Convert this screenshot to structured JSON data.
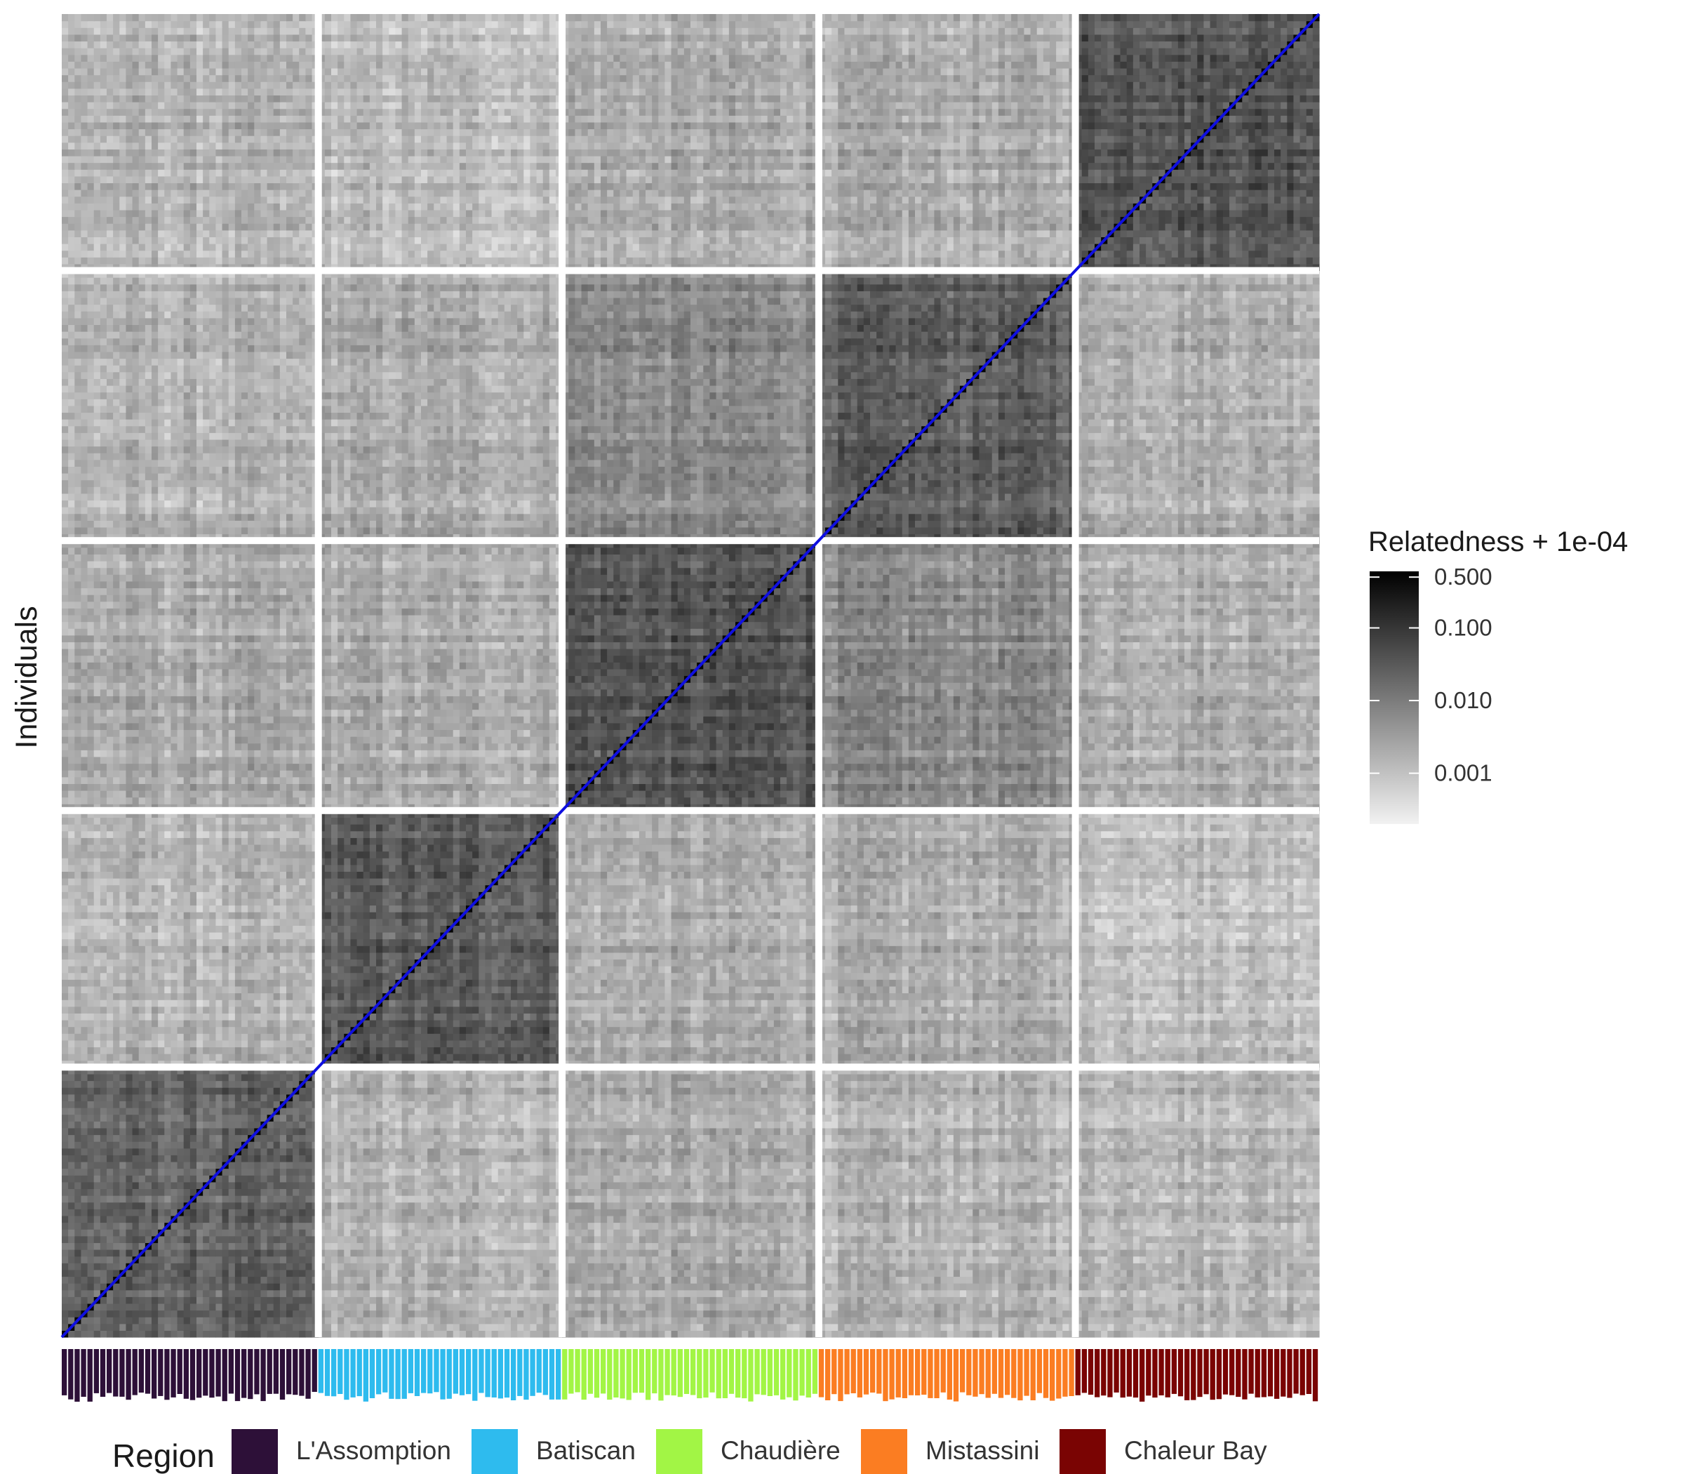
{
  "chart_data": {
    "type": "heatmap",
    "ylabel": "Individuals",
    "xlabel": "",
    "diagonal_color": "#1010e0",
    "color_scale": {
      "title": "Relatedness + 1e-04",
      "log_scale": true,
      "low_color": "#f2f2f2",
      "high_color": "#000000",
      "ticks": [
        {
          "value": 0.5,
          "label": "0.500"
        },
        {
          "value": 0.1,
          "label": "0.100"
        },
        {
          "value": 0.01,
          "label": "0.010"
        },
        {
          "value": 0.001,
          "label": "0.001"
        }
      ],
      "range": [
        0.0002,
        0.6
      ]
    },
    "region_legend": {
      "title": "Region",
      "entries": [
        {
          "name": "L'Assomption",
          "color": "#2d1038"
        },
        {
          "name": "Batiscan",
          "color": "#2ebbee"
        },
        {
          "name": "Chaudière",
          "color": "#a2f545"
        },
        {
          "name": "Mistassini",
          "color": "#fb7d22"
        },
        {
          "name": "Chaleur Bay",
          "color": "#7a0403"
        }
      ]
    },
    "blocks": [
      {
        "region": "L'Assomption",
        "individuals": 40
      },
      {
        "region": "Batiscan",
        "individuals": 38
      },
      {
        "region": "Chaudière",
        "individuals": 40
      },
      {
        "region": "Mistassini",
        "individuals": 40
      },
      {
        "region": "Chaleur Bay",
        "individuals": 38
      }
    ],
    "block_matrix_relatedness": [
      [
        0.02,
        0.0015,
        0.002,
        0.0015,
        0.0015
      ],
      [
        0.0015,
        0.03,
        0.002,
        0.002,
        0.0012
      ],
      [
        0.002,
        0.002,
        0.035,
        0.006,
        0.002
      ],
      [
        0.0015,
        0.002,
        0.006,
        0.025,
        0.002
      ],
      [
        0.0015,
        0.0012,
        0.002,
        0.002,
        0.04
      ]
    ],
    "diagonal_value": 0.5
  }
}
